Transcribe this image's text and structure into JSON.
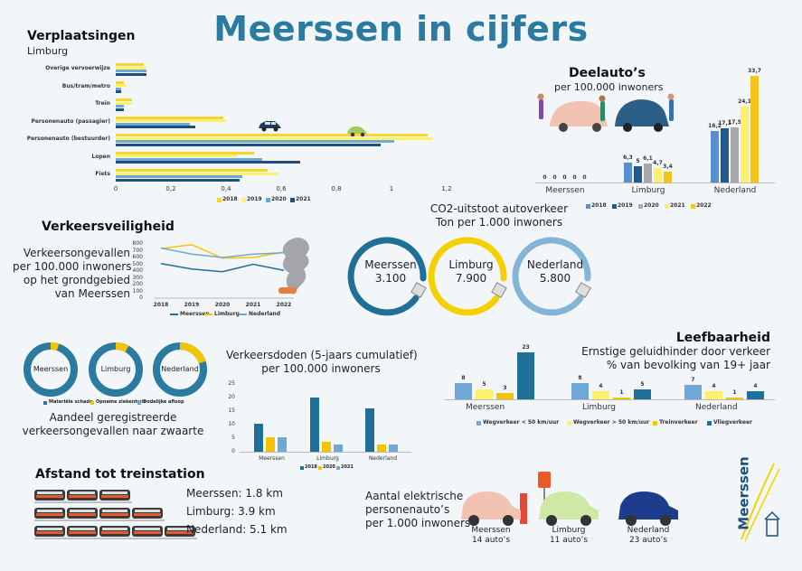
{
  "title": "Meerssen in cijfers",
  "colors": {
    "y2018": "#f5d62a",
    "y2019": "#fff06a",
    "y2020": "#9aa9b8",
    "y2021": "#1f5a8f",
    "y2022": "#f7c21a",
    "blue": "#2b7aa0",
    "lightblue": "#6fa8d6",
    "mid": "#1f6f98",
    "yellow": "#f5d000",
    "gray": "#aaaaaa",
    "darkblue": "#1d4f7c",
    "lblue": "#84b5d6"
  },
  "verplaatsingen": {
    "title": "Verplaatsingen",
    "subtitle": "Limburg",
    "categories": [
      "Overige vervoerwijze",
      "Bus/tram/metro",
      "Trein",
      "Personenauto (passagier)",
      "Personenauto (bestuurder)",
      "Lopen",
      "Fiets"
    ],
    "series": [
      {
        "name": "2018",
        "values": [
          0.1,
          0.03,
          0.06,
          0.39,
          1.13,
          0.5,
          0.55
        ]
      },
      {
        "name": "2019",
        "values": [
          0.11,
          0.04,
          0.06,
          0.4,
          1.15,
          0.44,
          0.59
        ]
      },
      {
        "name": "2020",
        "values": [
          0.11,
          0.02,
          0.03,
          0.27,
          1.01,
          0.53,
          0.46
        ]
      },
      {
        "name": "2021",
        "values": [
          0.11,
          0.02,
          0.03,
          0.29,
          0.96,
          0.67,
          0.45
        ]
      }
    ],
    "ticks": [
      "0",
      "0,2",
      "0,4",
      "0,6",
      "0,8",
      "1",
      "1,2"
    ],
    "legend": [
      "2018",
      "2019",
      "2020",
      "2021"
    ]
  },
  "deelautos": {
    "title": "Deelauto’s",
    "subtitle": "per 100.000 inwoners",
    "groups": [
      {
        "name": "Meerssen",
        "values": [
          0,
          0,
          0,
          0,
          0
        ],
        "labels": [
          "0",
          "0",
          "0",
          "0",
          "0"
        ]
      },
      {
        "name": "Limburg",
        "values": [
          6.3,
          5,
          6.1,
          4.7,
          3.4
        ],
        "labels": [
          "6,3",
          "5",
          "6,1",
          "4,7",
          "3,4"
        ]
      },
      {
        "name": "Nederland",
        "values": [
          16.2,
          17.1,
          17.5,
          24.1,
          33.7
        ],
        "labels": [
          "16,2",
          "17,1",
          "17,5",
          "24,1",
          "33,7"
        ]
      }
    ],
    "legend": [
      "2018",
      "2019",
      "2020",
      "2021",
      "2022"
    ]
  },
  "co2": {
    "title_line1": "CO2-uitstoot autoverkeer",
    "title_line2": "Ton per 1.000 inwoners",
    "items": [
      {
        "name": "Meerssen",
        "value": "3.100"
      },
      {
        "name": "Limburg",
        "value": "7.900"
      },
      {
        "name": "Nederland",
        "value": "5.800"
      }
    ]
  },
  "veiligheid": {
    "title": "Verkeersveiligheid",
    "desc_line1": "Verkeersongevallen",
    "desc_line2": "per 100.000 inwoners",
    "desc_line3": "op het grondgebied",
    "desc_line4": "van Meerssen",
    "years": [
      "2018",
      "2019",
      "2020",
      "2021",
      "2022"
    ],
    "yticks": [
      "800",
      "700",
      "600",
      "500",
      "400",
      "300",
      "200",
      "100",
      "0"
    ],
    "series": [
      {
        "name": "Meerssen",
        "values": [
          510,
          430,
          390,
          500,
          410
        ]
      },
      {
        "name": "Limburg",
        "values": [
          730,
          790,
          590,
          600,
          680
        ]
      },
      {
        "name": "Nederland",
        "values": [
          740,
          650,
          600,
          650,
          670
        ]
      }
    ],
    "legend": [
      "Meerssen",
      "Limburg",
      "Nederland"
    ]
  },
  "zwaarte": {
    "names": [
      "Meerssen",
      "Limburg",
      "Nederland"
    ],
    "shares": [
      0.05,
      0.08,
      0.2
    ],
    "legend": [
      "Materiële schade",
      "Opname ziekenhuis",
      "Dodelijke afloop"
    ],
    "caption_line1": "Aandeel geregistreerde",
    "caption_line2": "verkeersongevallen naar zwaarte"
  },
  "verkeersdoden": {
    "title_line1": "Verkeersdoden (5-jaars cumulatief)",
    "title_line2": "per 100.000 inwoners",
    "yticks": [
      "25",
      "20",
      "15",
      "10",
      "5",
      "0"
    ],
    "groups": [
      {
        "name": "Meerssen",
        "values": [
          10.5,
          5.3,
          5.3
        ]
      },
      {
        "name": "Limburg",
        "values": [
          20,
          3.6,
          2.7
        ]
      },
      {
        "name": "Nederland",
        "values": [
          16,
          2.8,
          2.8
        ]
      }
    ],
    "legend": [
      "2018",
      "2020",
      "2021"
    ]
  },
  "leefbaarheid": {
    "title": "Leefbaarheid",
    "sub_line1": "Ernstige geluidhinder door verkeer",
    "sub_line2": "% van bevolking van 19+ jaar",
    "groups": [
      {
        "name": "Meerssen",
        "values": [
          8,
          5,
          3,
          23
        ]
      },
      {
        "name": "Limburg",
        "values": [
          8,
          4,
          1,
          5
        ]
      },
      {
        "name": "Nederland",
        "values": [
          7,
          4,
          1,
          4
        ]
      }
    ],
    "legend": [
      "Wegverkeer < 50 km/uur",
      "Wegverkeer > 50 km/uur",
      "Treinverkeer",
      "Vliegverkeer"
    ]
  },
  "trein": {
    "title": "Afstand tot treinstation",
    "items": [
      "Meerssen: 1.8 km",
      "Limburg: 3.9 km",
      "Nederland: 5.1 km"
    ]
  },
  "elektrisch": {
    "label_line1": "Aantal elektrische",
    "label_line2": "personenauto’s",
    "label_line3": "per 1.000 inwoners",
    "items": [
      {
        "name": "Meerssen",
        "count": "14 auto’s"
      },
      {
        "name": "Limburg",
        "count": "11 auto’s"
      },
      {
        "name": "Nederland",
        "count": "23 auto’s"
      }
    ]
  },
  "logo": "Meerssen"
}
